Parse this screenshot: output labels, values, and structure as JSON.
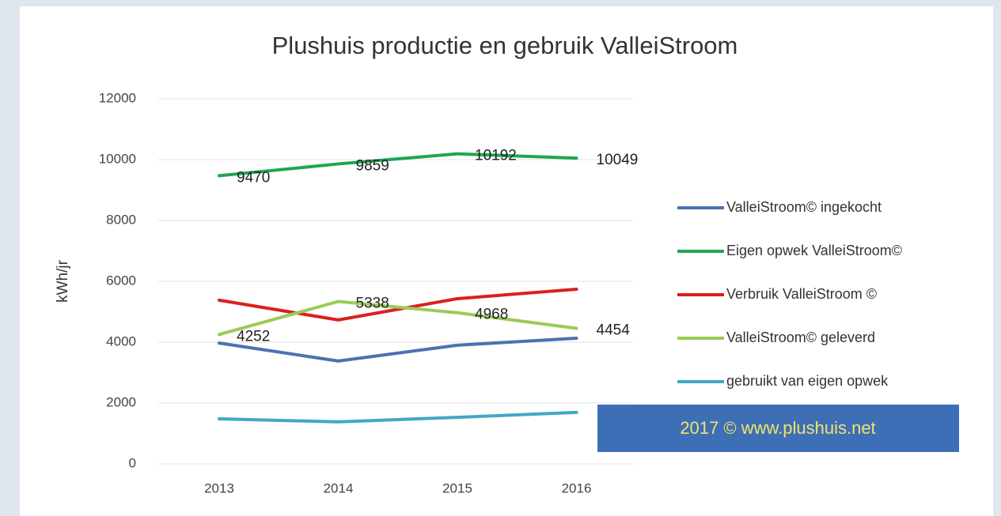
{
  "chart_data": {
    "type": "line",
    "title": "Plushuis productie en gebruik ValleiStroom",
    "y_label": "kWh/jr",
    "annotation": "2017 © www.plushuis.net",
    "categories": [
      "2013",
      "2014",
      "2015",
      "2016"
    ],
    "ylim": [
      0,
      12000
    ],
    "yticks": [
      0,
      2000,
      4000,
      6000,
      8000,
      10000,
      12000
    ],
    "grid": true,
    "legend": "right",
    "series": [
      {
        "name": "ValleiStroom© ingekocht",
        "color": "#4a72b0",
        "values": [
          3970,
          3380,
          3900,
          4130
        ],
        "show_values": false
      },
      {
        "name": "Eigen opwek ValleiStroom©",
        "color": "#1fa651",
        "values": [
          9470,
          9859,
          10192,
          10049
        ],
        "show_values": true
      },
      {
        "name": "Verbruik ValleiStroom ©",
        "color": "#d9201f",
        "values": [
          5380,
          4730,
          5430,
          5740
        ],
        "show_values": false
      },
      {
        "name": "ValleiStroom© geleverd",
        "color": "#99cc55",
        "values": [
          4252,
          5338,
          4968,
          4454
        ],
        "show_values": true
      },
      {
        "name": "gebruikt van eigen opwek",
        "color": "#42a8c4",
        "values": [
          1480,
          1380,
          1530,
          1690
        ],
        "show_values": false
      }
    ]
  }
}
